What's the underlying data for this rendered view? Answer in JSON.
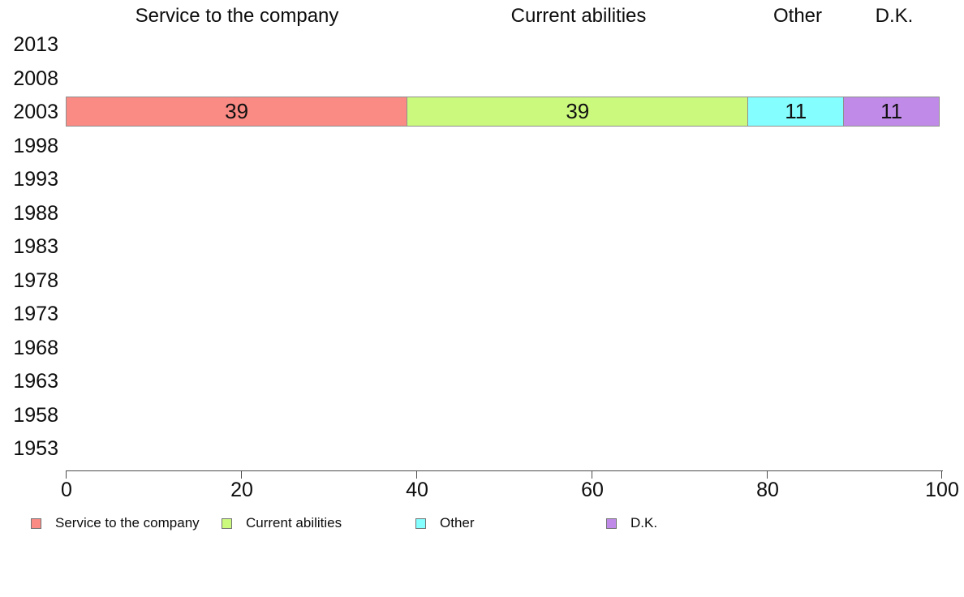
{
  "chart_data": {
    "type": "bar",
    "orientation": "horizontal",
    "stacked": true,
    "title": "",
    "xlabel": "",
    "ylabel": "",
    "categories": [
      "2013",
      "2008",
      "2003",
      "1998",
      "1993",
      "1988",
      "1983",
      "1978",
      "1973",
      "1968",
      "1963",
      "1958",
      "1953"
    ],
    "series": [
      {
        "name": "Service to the company",
        "color": "#FA8A84",
        "data": {
          "2003": 39
        }
      },
      {
        "name": "Current abilities",
        "color": "#CBF97E",
        "data": {
          "2003": 39
        }
      },
      {
        "name": "Other",
        "color": "#85FEFF",
        "data": {
          "2003": 11
        }
      },
      {
        "name": "D.K.",
        "color": "#C08BE8",
        "data": {
          "2003": 11
        }
      }
    ],
    "xlim": [
      0,
      100
    ],
    "x_ticks": [
      "0",
      "20",
      "40",
      "60",
      "80",
      "100"
    ],
    "grid": false,
    "legend_position": "bottom",
    "axis_color": "#4c4c4c",
    "background_color": "#ffffff"
  }
}
